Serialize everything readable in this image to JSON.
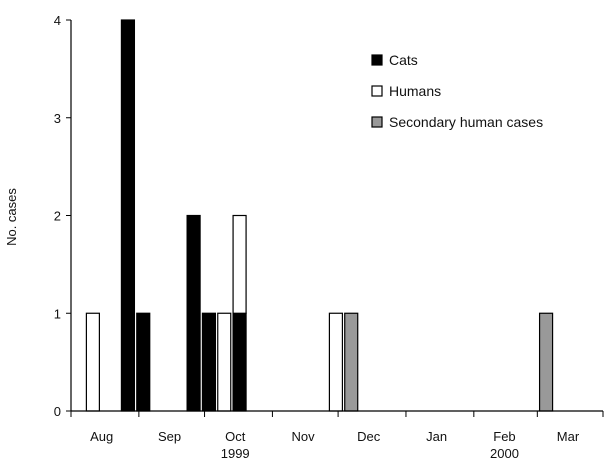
{
  "chart_data": {
    "type": "bar",
    "title": "",
    "xlabel": "",
    "ylabel": "No. cases",
    "ylim": [
      0,
      4
    ],
    "yticks": [
      0,
      1,
      2,
      3,
      4
    ],
    "grid": false,
    "legend_position": "top-right",
    "x_axis": {
      "start": "1999-08-01",
      "end": "2000-03-31",
      "month_labels": [
        {
          "label": "Aug",
          "date": "1999-08-15"
        },
        {
          "label": "Sep",
          "date": "1999-09-15"
        },
        {
          "label": "Oct",
          "date": "1999-10-15"
        },
        {
          "label": "Nov",
          "date": "1999-11-15"
        },
        {
          "label": "Dec",
          "date": "1999-12-15"
        },
        {
          "label": "Jan",
          "date": "2000-01-15"
        },
        {
          "label": "Feb",
          "date": "2000-02-15"
        },
        {
          "label": "Mar",
          "date": "2000-03-15"
        }
      ],
      "year_labels": [
        {
          "label": "1999",
          "date": "1999-10-15"
        },
        {
          "label": "2000",
          "date": "2000-02-15"
        }
      ]
    },
    "series": [
      {
        "name": "Cats",
        "color": "#000000"
      },
      {
        "name": "Humans",
        "color": "#ffffff"
      },
      {
        "name": "Secondary human cases",
        "color": "#999999"
      }
    ],
    "bars": [
      {
        "date": "1999-08-11",
        "segments": [
          {
            "series": "Humans",
            "value": 1
          }
        ]
      },
      {
        "date": "1999-08-27",
        "segments": [
          {
            "series": "Cats",
            "value": 4
          }
        ]
      },
      {
        "date": "1999-09-03",
        "segments": [
          {
            "series": "Cats",
            "value": 1
          }
        ]
      },
      {
        "date": "1999-09-26",
        "segments": [
          {
            "series": "Cats",
            "value": 2
          }
        ]
      },
      {
        "date": "1999-10-03",
        "segments": [
          {
            "series": "Cats",
            "value": 1
          }
        ]
      },
      {
        "date": "1999-10-10",
        "segments": [
          {
            "series": "Humans",
            "value": 1
          }
        ]
      },
      {
        "date": "1999-10-17",
        "segments": [
          {
            "series": "Cats",
            "value": 1
          },
          {
            "series": "Humans",
            "value": 1
          }
        ]
      },
      {
        "date": "1999-11-30",
        "segments": [
          {
            "series": "Humans",
            "value": 1
          }
        ]
      },
      {
        "date": "1999-12-07",
        "segments": [
          {
            "series": "Secondary human cases",
            "value": 1
          }
        ]
      },
      {
        "date": "2000-03-05",
        "segments": [
          {
            "series": "Secondary human cases",
            "value": 1
          }
        ]
      }
    ]
  }
}
